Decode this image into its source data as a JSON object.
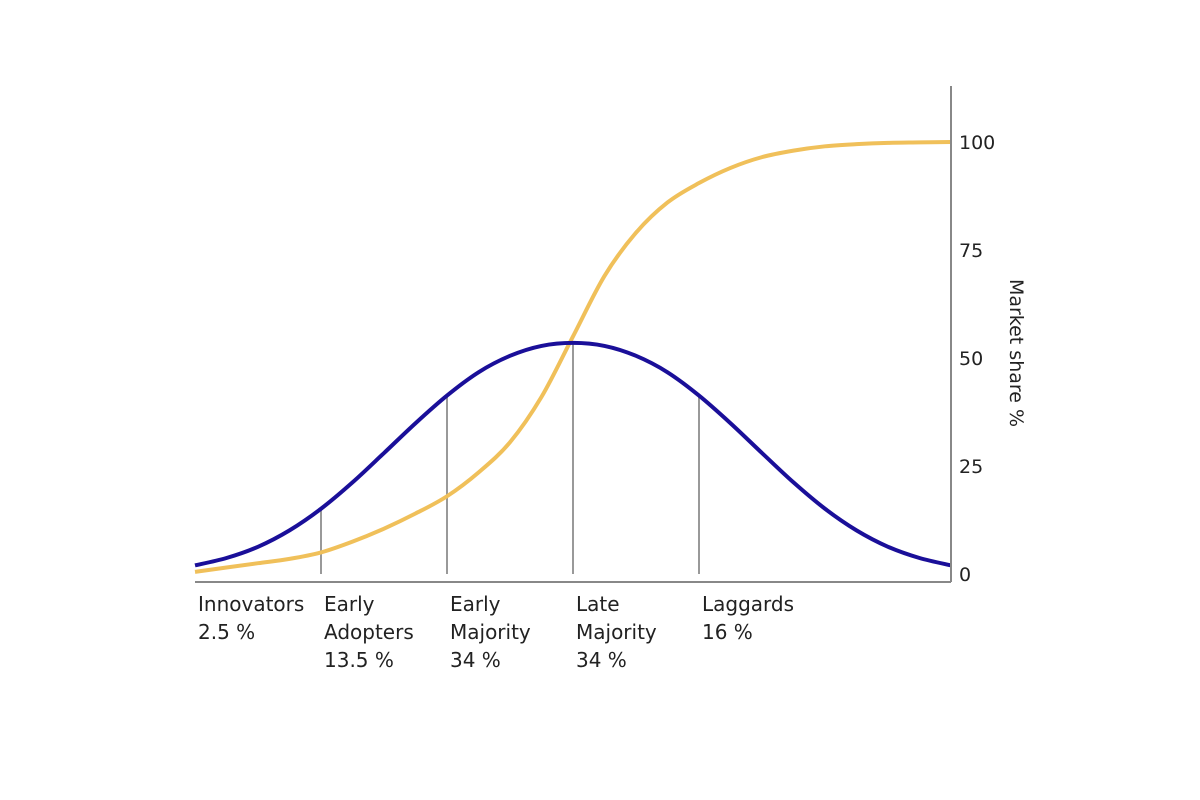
{
  "chart_data": {
    "type": "line",
    "ylabel": "Market share %",
    "y_ticks": [
      "0",
      "25",
      "50",
      "75",
      "100"
    ],
    "ylim": [
      0,
      100
    ],
    "xlim": [
      -3,
      3
    ],
    "grid": false,
    "y_axis_side": "right",
    "colors": {
      "adoption_curve": "#1a0f99",
      "market_share_curve": "#f0c05a",
      "axis": "#888888",
      "divider": "#999999"
    },
    "segments": [
      {
        "name": "Innovators",
        "share": "2.5 %",
        "start": -3,
        "end": -2
      },
      {
        "name": "Early Adopters",
        "share": "13.5 %",
        "start": -2,
        "end": -1
      },
      {
        "name": "Early Majority",
        "share": "34 %",
        "start": -1,
        "end": 0
      },
      {
        "name": "Late Majority",
        "share": "34 %",
        "start": 0,
        "end": 1
      },
      {
        "name": "Laggards",
        "share": "16 %",
        "start": 1,
        "end": 3
      }
    ],
    "segment_labels": [
      [
        "Innovators",
        "2.5 %"
      ],
      [
        "Early",
        "Adopters",
        "13.5 %"
      ],
      [
        "Early",
        "Majority",
        "34 %"
      ],
      [
        "Late",
        "Majority",
        "34 %"
      ],
      [
        "Laggards",
        "16 %"
      ]
    ],
    "dividers_x": [
      -2,
      -1,
      0,
      1
    ],
    "series": [
      {
        "kind": "adoption_curve",
        "x": [
          -3,
          -2.75,
          -2.5,
          -2.25,
          -2,
          -1.75,
          -1.5,
          -1.25,
          -1,
          -0.75,
          -0.5,
          -0.25,
          0,
          0.25,
          0.5,
          0.75,
          1,
          1.25,
          1.5,
          1.75,
          2,
          2.25,
          2.5,
          2.75,
          3
        ],
        "y": [
          2,
          3.7,
          6.3,
          10.1,
          15.1,
          21.2,
          28,
          34.9,
          41.3,
          46.7,
          50.5,
          52.8,
          53.5,
          52.8,
          50.5,
          46.7,
          41.3,
          34.9,
          28,
          21.2,
          15.1,
          10.1,
          6.3,
          3.7,
          2
        ]
      },
      {
        "kind": "market_share_curve",
        "x": [
          -3,
          -2.75,
          -2.5,
          -2.25,
          -2,
          -1.75,
          -1.5,
          -1.25,
          -1,
          -0.75,
          -0.5,
          -0.25,
          0,
          0.25,
          0.5,
          0.75,
          1,
          1.25,
          1.5,
          1.75,
          2,
          2.25,
          2.5,
          2.75,
          3
        ],
        "y": [
          0.5,
          1.5,
          2.5,
          3.5,
          5,
          7.5,
          10.5,
          14,
          18,
          23.5,
          30.5,
          41,
          55,
          69,
          79,
          86,
          90.5,
          94,
          96.5,
          98,
          99,
          99.5,
          99.8,
          99.9,
          100
        ]
      }
    ]
  }
}
